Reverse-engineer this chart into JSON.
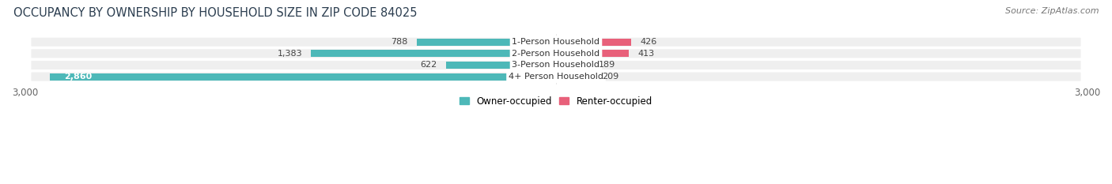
{
  "title": "OCCUPANCY BY OWNERSHIP BY HOUSEHOLD SIZE IN ZIP CODE 84025",
  "source": "Source: ZipAtlas.com",
  "categories": [
    "1-Person Household",
    "2-Person Household",
    "3-Person Household",
    "4+ Person Household"
  ],
  "owner_values": [
    788,
    1383,
    622,
    2860
  ],
  "renter_values": [
    426,
    413,
    189,
    209
  ],
  "owner_color": "#4DB8B8",
  "renter_colors": [
    "#E8607A",
    "#E8607A",
    "#F0A0B8",
    "#F0A0B8"
  ],
  "row_bg_color": "#EFEFEF",
  "axis_limit": 3000,
  "title_fontsize": 10.5,
  "source_fontsize": 8,
  "label_fontsize": 8,
  "value_fontsize": 8,
  "legend_fontsize": 8.5,
  "tick_fontsize": 8.5,
  "legend_owner_color": "#4DB8B8",
  "legend_renter_color": "#E8607A"
}
